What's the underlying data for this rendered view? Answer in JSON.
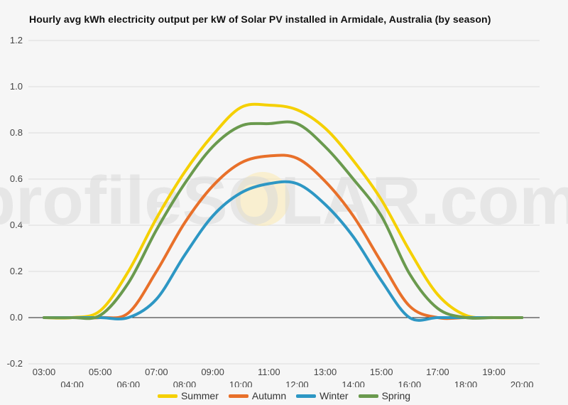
{
  "chart_data": {
    "type": "line",
    "title": "Hourly avg kWh electricity output per kW of Solar PV installed in Armidale, Australia (by season)",
    "watermark": "profileSOLAR.com",
    "x_labels": [
      "03:00",
      "04:00",
      "05:00",
      "06:00",
      "07:00",
      "08:00",
      "09:00",
      "10:00",
      "11:00",
      "12:00",
      "13:00",
      "14:00",
      "15:00",
      "16:00",
      "17:00",
      "18:00",
      "19:00",
      "20:00"
    ],
    "ylim": [
      -0.2,
      1.2
    ],
    "yticks": [
      -0.2,
      0.0,
      0.2,
      0.4,
      0.6,
      0.8,
      1.0,
      1.2
    ],
    "ytick_labels": [
      "-0.2",
      "0.0",
      "0.2",
      "0.4",
      "0.6",
      "0.8",
      "1.0",
      "1.2"
    ],
    "grid": true,
    "legend_position": "bottom",
    "series": [
      {
        "name": "Summer",
        "color": "#f5d000",
        "values": [
          0,
          0,
          0.03,
          0.2,
          0.43,
          0.63,
          0.79,
          0.91,
          0.92,
          0.9,
          0.82,
          0.68,
          0.51,
          0.29,
          0.1,
          0.01,
          0,
          0
        ]
      },
      {
        "name": "Autumn",
        "color": "#e8702a",
        "values": [
          0,
          0,
          0,
          0.02,
          0.2,
          0.41,
          0.57,
          0.67,
          0.7,
          0.69,
          0.59,
          0.44,
          0.24,
          0.05,
          0,
          0,
          0,
          0
        ]
      },
      {
        "name": "Winter",
        "color": "#2d97c4",
        "values": [
          0,
          0,
          0,
          0,
          0.08,
          0.27,
          0.44,
          0.54,
          0.58,
          0.58,
          0.49,
          0.35,
          0.16,
          0,
          0,
          0,
          0,
          0
        ]
      },
      {
        "name": "Spring",
        "color": "#6a9a4e",
        "values": [
          0,
          0,
          0.01,
          0.15,
          0.38,
          0.58,
          0.74,
          0.83,
          0.84,
          0.84,
          0.74,
          0.6,
          0.44,
          0.19,
          0.04,
          0,
          0,
          0
        ]
      }
    ]
  }
}
